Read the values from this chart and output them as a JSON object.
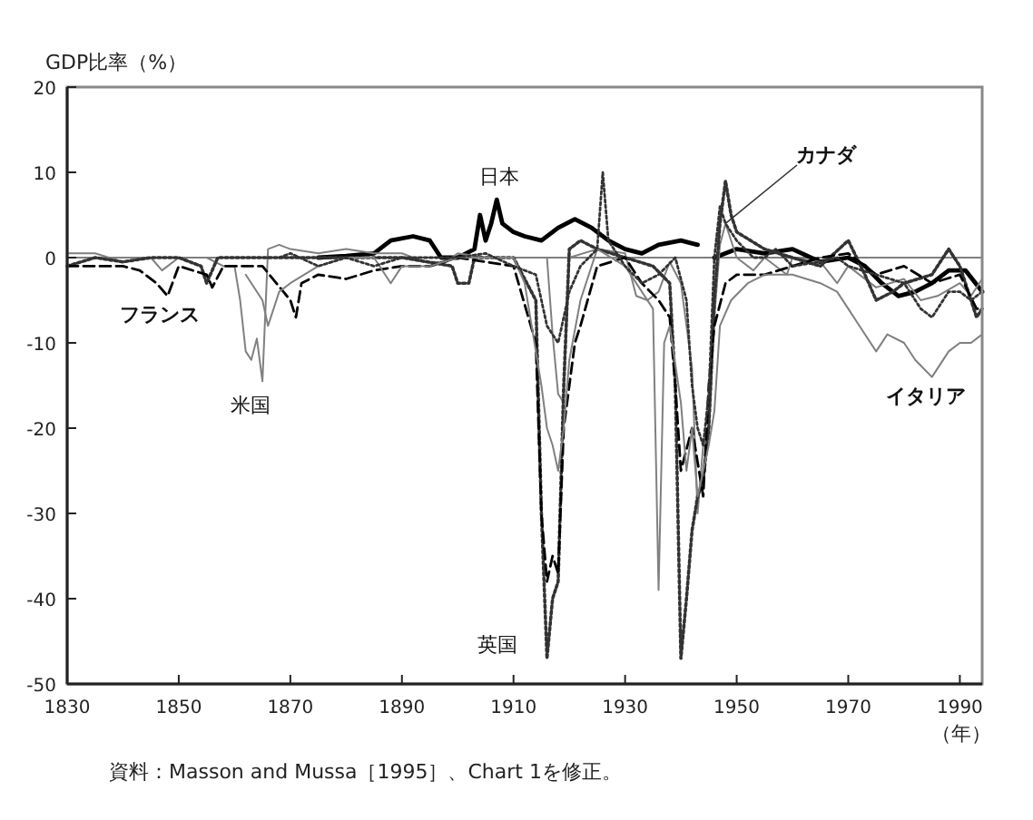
{
  "chart_data": {
    "type": "line",
    "ylabel": "GDP比率（%）",
    "xlabel": "（年）",
    "xlim": [
      1830,
      1994
    ],
    "xticks": [
      1830,
      1850,
      1870,
      1890,
      1910,
      1930,
      1950,
      1970,
      1990
    ],
    "ylim": [
      -50,
      20
    ],
    "yticks": [
      -50,
      -40,
      -30,
      -20,
      -10,
      0,
      10,
      20
    ],
    "grid": false,
    "legend": false,
    "marker": "none",
    "ref_lines": [
      {
        "axis": "y",
        "value": 0,
        "color": "#808080",
        "line_style": "solid"
      }
    ],
    "annotations": [
      "資料：Masson and Mussa［1995］、Chart 1を修正。"
    ],
    "series": [
      {
        "name": "日本",
        "color": "#000000",
        "line_style": "solid",
        "x": [
          1875,
          1880,
          1885,
          1888,
          1892,
          1895,
          1897,
          1900,
          1903,
          1904,
          1905,
          1906,
          1907,
          1908,
          1910,
          1912,
          1915,
          1918,
          1921,
          1924,
          1927,
          1930,
          1933,
          1936,
          1940,
          1943,
          1944,
          1946,
          1950,
          1955,
          1960,
          1965,
          1970,
          1973,
          1976,
          1979,
          1982,
          1985,
          1988,
          1991,
          1994
        ],
        "values": [
          0,
          0.2,
          0.5,
          2,
          2.5,
          2,
          0,
          0,
          1,
          5,
          2,
          4,
          6.8,
          4,
          3,
          2.5,
          2,
          3.5,
          4.5,
          3.5,
          2,
          1,
          0.5,
          1.5,
          2,
          1.5,
          null,
          0,
          1,
          0.5,
          1,
          -0.5,
          0,
          -1,
          -3,
          -4.5,
          -4,
          -3,
          -1.5,
          -1.5,
          -4
        ]
      },
      {
        "name": "米国",
        "color": "#808080",
        "line_style": "solid",
        "x": [
          1830,
          1835,
          1840,
          1845,
          1847,
          1850,
          1855,
          1858,
          1860,
          1861,
          1862,
          1863,
          1864,
          1865,
          1866,
          1868,
          1870,
          1875,
          1880,
          1885,
          1890,
          1894,
          1898,
          1900,
          1905,
          1910,
          1916,
          1917,
          1918,
          1919,
          1920,
          1925,
          1930,
          1932,
          1934,
          1936,
          1938,
          1940,
          1942,
          1943,
          1944,
          1945,
          1946,
          1947,
          1948,
          1950,
          1953,
          1955,
          1959,
          1960,
          1965,
          1968,
          1970,
          1975,
          1980,
          1983,
          1986,
          1990,
          1992,
          1994
        ],
        "values": [
          0.5,
          0.5,
          -0.5,
          0,
          -1.5,
          0,
          0,
          -1,
          -1,
          -5,
          -11,
          -12,
          -9.5,
          -14.5,
          1,
          1.5,
          1,
          0.5,
          1,
          0.5,
          0.5,
          -0.5,
          -0.5,
          0.5,
          0,
          0,
          0,
          -9,
          -16,
          -17,
          0,
          1,
          0.5,
          -4.5,
          -5,
          -4,
          -0.5,
          -3,
          -13,
          -30,
          -22,
          -21,
          -7,
          1.5,
          4,
          0,
          -1.5,
          0,
          -2,
          0,
          -0.5,
          -3,
          -1,
          -3.5,
          -2.5,
          -5,
          -4.5,
          -3,
          -4.5,
          -2.5
        ]
      },
      {
        "name": "英国",
        "color": "#333333",
        "line_style": "dotted",
        "x": [
          1830,
          1835,
          1840,
          1845,
          1850,
          1854,
          1855,
          1857,
          1860,
          1870,
          1880,
          1890,
          1899,
          1900,
          1902,
          1903,
          1910,
          1914,
          1915,
          1916,
          1917,
          1918,
          1919,
          1920,
          1922,
          1925,
          1930,
          1935,
          1938,
          1939,
          1940,
          1941,
          1942,
          1943,
          1944,
          1945,
          1946,
          1947,
          1948,
          1949,
          1950,
          1955,
          1960,
          1965,
          1970,
          1973,
          1975,
          1978,
          1980,
          1985,
          1988,
          1990,
          1993,
          1994
        ],
        "values": [
          -1,
          0,
          -0.5,
          0,
          0,
          -1,
          -3,
          0,
          0,
          0,
          0,
          0,
          -1,
          -3,
          -3,
          0,
          0,
          -5,
          -30,
          -47,
          -40,
          -38,
          -15,
          1,
          2,
          1,
          0,
          -1,
          -3,
          -15,
          -47,
          -40,
          -32,
          -28,
          -26,
          -20,
          -5,
          4,
          9,
          5,
          3,
          1,
          0,
          -1,
          2,
          -2,
          -5,
          -4,
          -3,
          -2,
          1,
          -1,
          -7,
          -6
        ]
      },
      {
        "name": "フランス",
        "color": "#000000",
        "line_style": "dashed",
        "x": [
          1830,
          1835,
          1840,
          1843,
          1846,
          1848,
          1850,
          1855,
          1856,
          1858,
          1860,
          1865,
          1870,
          1871,
          1872,
          1875,
          1880,
          1885,
          1890,
          1895,
          1900,
          1910,
          1914,
          1915,
          1916,
          1917,
          1918,
          1919,
          1920,
          1921,
          1922,
          1925,
          1930,
          1933,
          1936,
          1938,
          1939,
          1940,
          1942,
          1944,
          1945,
          1946,
          1948,
          1950,
          1955,
          1960,
          1965,
          1970,
          1975,
          1980,
          1985,
          1990,
          1993,
          1994
        ],
        "values": [
          -1,
          -1,
          -1,
          -1.5,
          -3,
          -4.5,
          -1,
          -2,
          -3.5,
          -1,
          -1,
          -1,
          -5,
          -7,
          -3,
          -2,
          -2.5,
          -1.5,
          -1,
          -1,
          0,
          -1,
          -10,
          -30,
          -38,
          -35,
          -37,
          -20,
          -15,
          -10,
          -8,
          -1,
          0,
          -3,
          -5,
          -7,
          -15,
          -25,
          -20,
          -28,
          -15,
          -8,
          -3,
          -2,
          -2,
          -1,
          0,
          0.5,
          -2,
          -1,
          -3,
          -2,
          -6,
          -6
        ]
      },
      {
        "name": "イタリア",
        "color": "#808080",
        "line_style": "solid",
        "x": [
          1862,
          1865,
          1866,
          1868,
          1870,
          1875,
          1880,
          1885,
          1888,
          1890,
          1895,
          1900,
          1905,
          1910,
          1912,
          1915,
          1916,
          1917,
          1918,
          1919,
          1920,
          1922,
          1925,
          1930,
          1935,
          1936,
          1937,
          1938,
          1940,
          1941,
          1942,
          1943,
          1945,
          1946,
          1947,
          1949,
          1952,
          1955,
          1960,
          1965,
          1968,
          1970,
          1972,
          1975,
          1977,
          1980,
          1982,
          1985,
          1988,
          1990,
          1992,
          1994
        ],
        "values": [
          -2,
          -5,
          -8,
          -4,
          -3,
          -1,
          0,
          0,
          -3,
          -1,
          -1,
          0,
          0,
          0,
          -3,
          -15,
          -20,
          -22,
          -25,
          -20,
          -12,
          -5,
          1,
          -1,
          -6,
          -39,
          -10,
          -8,
          -17,
          -25,
          -20,
          -28,
          -22,
          -18,
          -8,
          -5,
          -3,
          -2,
          -2,
          -3,
          -4,
          -6,
          -8,
          -11,
          -9,
          -10,
          -12,
          -14,
          -11,
          -10,
          -10,
          -9
        ]
      },
      {
        "name": "カナダ",
        "color": "#333333",
        "line_style": "dotted",
        "x": [
          1868,
          1870,
          1875,
          1880,
          1885,
          1890,
          1900,
          1905,
          1910,
          1914,
          1916,
          1918,
          1920,
          1922,
          1925,
          1926,
          1927,
          1930,
          1933,
          1936,
          1939,
          1941,
          1942,
          1943,
          1944,
          1945,
          1946,
          1947,
          1948,
          1950,
          1953,
          1955,
          1957,
          1960,
          1965,
          1968,
          1970,
          1975,
          1980,
          1983,
          1985,
          1988,
          1990,
          1992,
          1994
        ],
        "values": [
          0,
          0.5,
          -1,
          0,
          -1,
          0,
          0,
          0.5,
          -1,
          -2,
          -8,
          -10,
          -4,
          -1,
          1,
          10,
          2,
          -1,
          -3,
          -2,
          0,
          -5,
          -15,
          -20,
          -22,
          -16,
          0,
          6,
          4,
          2,
          0,
          0,
          1,
          -1,
          -0.5,
          0,
          -1,
          -2,
          -3,
          -6,
          -7,
          -4,
          -4,
          -5,
          -4
        ]
      }
    ]
  }
}
